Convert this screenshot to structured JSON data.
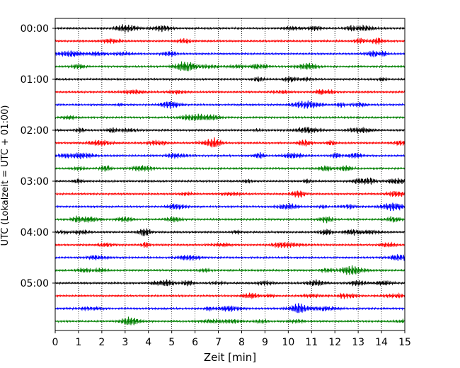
{
  "chart_data": {
    "type": "line",
    "title": "",
    "xlabel": "Zeit  [min]",
    "ylabel": "UTC (Lokalzeit = UTC + 01:00)",
    "xlim": [
      0,
      15
    ],
    "xticks": [
      0,
      1,
      2,
      3,
      4,
      5,
      6,
      7,
      8,
      9,
      10,
      11,
      12,
      13,
      14,
      15
    ],
    "yticks": [
      "00:00",
      "01:00",
      "02:00",
      "03:00",
      "04:00",
      "05:00"
    ],
    "grid": "vertical dotted lines at each minute",
    "trace_interval_minutes": 15,
    "trace_start_times": [
      "00:00",
      "00:15",
      "00:30",
      "00:45",
      "01:00",
      "01:15",
      "01:30",
      "01:45",
      "02:00",
      "02:15",
      "02:30",
      "02:45",
      "03:00",
      "03:15",
      "03:30",
      "03:45",
      "04:00",
      "04:15",
      "04:30",
      "04:45",
      "05:00",
      "05:15",
      "05:30",
      "05:45"
    ],
    "trace_colors": [
      "#000000",
      "#ff0000",
      "#0000ff",
      "#008000"
    ],
    "notes_visible": "Seismogram helicorder: each row is a 15-minute trace; colors repeat black, red, blue, green."
  }
}
